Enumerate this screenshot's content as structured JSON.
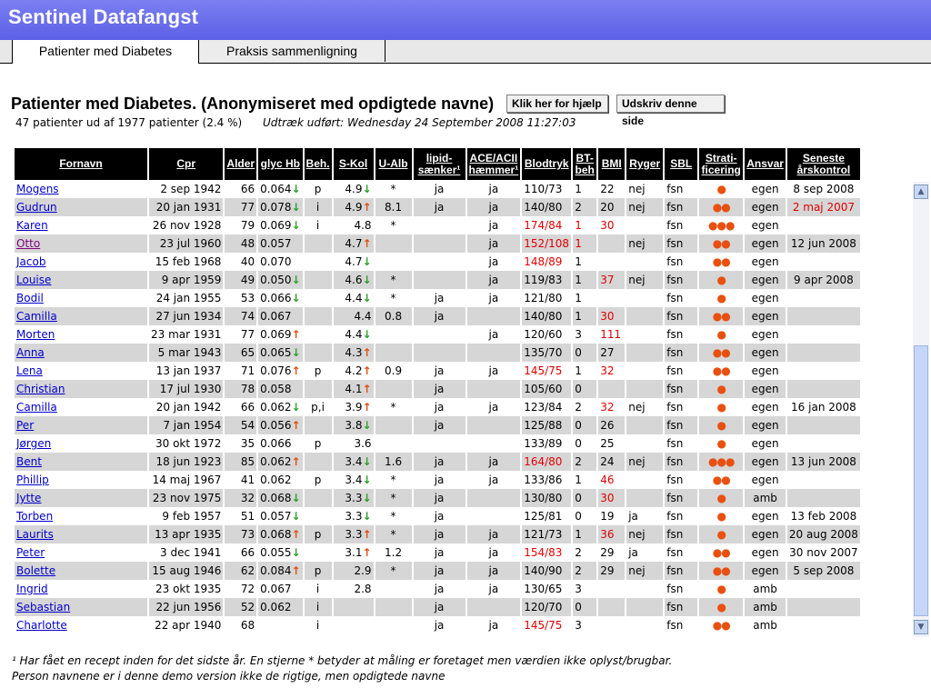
{
  "app_title": "Sentinel Datafangst",
  "tabs": [
    {
      "label": "Patienter med Diabetes"
    },
    {
      "label": "Praksis sammenligning"
    }
  ],
  "page_title": "Patienter med Diabetes. (Anonymiseret med opdigtede navne)",
  "buttons": {
    "help": "Klik her for hjælp",
    "print": "Udskriv denne side"
  },
  "summary": "47 patienter ud af 1977 patienter (2.4 %)",
  "extract": "Udtræk udført: Wednesday 24 September 2008 11:27:03",
  "columns": [
    "Fornavn",
    "Cpr",
    "Alder",
    "glyc Hb",
    "Beh.",
    "S-Kol",
    "U-Alb",
    "lipid-sænker¹",
    "ACE/ACII hæmmer¹",
    "Blodtryk",
    "BT-beh",
    "BMI",
    "Ryger",
    "SBL",
    "Strati-ficering",
    "Ansvar",
    "Seneste årskontrol"
  ],
  "rows": [
    {
      "name": "Mogens",
      "cpr": "2 sep 1942",
      "age": "66",
      "hb": "0.064",
      "hb_t": "down",
      "beh": "p",
      "kol": "4.9",
      "kol_t": "down",
      "alb": "*",
      "lipid": "ja",
      "ace": "ja",
      "bt": "110/73",
      "bt_red": false,
      "btbeh": "1",
      "btbeh_red": false,
      "bmi": "22",
      "bmi_red": false,
      "ryger": "nej",
      "sbl": "fsn",
      "strat": "●",
      "ansvar": "egen",
      "seneste": "8 sep 2008",
      "seneste_red": false
    },
    {
      "name": "Gudrun",
      "cpr": "20 jan 1931",
      "age": "77",
      "hb": "0.078",
      "hb_t": "down",
      "beh": "i",
      "kol": "4.9",
      "kol_t": "up",
      "alb": "8.1",
      "lipid": "ja",
      "ace": "ja",
      "bt": "140/80",
      "bt_red": false,
      "btbeh": "2",
      "btbeh_red": false,
      "bmi": "20",
      "bmi_red": false,
      "ryger": "nej",
      "sbl": "fsn",
      "strat": "●●",
      "ansvar": "egen",
      "seneste": "2 maj 2007",
      "seneste_red": true
    },
    {
      "name": "Karen",
      "cpr": "26 nov 1928",
      "age": "79",
      "hb": "0.069",
      "hb_t": "down",
      "beh": "i",
      "kol": "4.8",
      "kol_t": "",
      "alb": "*",
      "lipid": "",
      "ace": "ja",
      "bt": "174/84",
      "bt_red": true,
      "btbeh": "1",
      "btbeh_red": true,
      "bmi": "30",
      "bmi_red": true,
      "ryger": "",
      "sbl": "fsn",
      "strat": "●●●",
      "ansvar": "egen",
      "seneste": "",
      "seneste_red": false
    },
    {
      "name": "Otto",
      "visited": true,
      "cpr": "23 jul 1960",
      "age": "48",
      "hb": "0.057",
      "hb_t": "",
      "beh": "",
      "kol": "4.7",
      "kol_t": "up",
      "alb": "",
      "lipid": "",
      "ace": "ja",
      "bt": "152/108",
      "bt_red": true,
      "btbeh": "1",
      "btbeh_red": true,
      "bmi": "",
      "bmi_red": false,
      "ryger": "nej",
      "sbl": "fsn",
      "strat": "●●",
      "ansvar": "egen",
      "seneste": "12 jun 2008",
      "seneste_red": false
    },
    {
      "name": "Jacob",
      "cpr": "15 feb 1968",
      "age": "40",
      "hb": "0.070",
      "hb_t": "",
      "beh": "",
      "kol": "4.7",
      "kol_t": "down",
      "alb": "",
      "lipid": "",
      "ace": "ja",
      "bt": "148/89",
      "bt_red": true,
      "btbeh": "1",
      "btbeh_red": false,
      "bmi": "",
      "bmi_red": false,
      "ryger": "",
      "sbl": "fsn",
      "strat": "●●",
      "ansvar": "egen",
      "seneste": "",
      "seneste_red": false
    },
    {
      "name": "Louise",
      "cpr": "9 apr 1959",
      "age": "49",
      "hb": "0.050",
      "hb_t": "down",
      "beh": "",
      "kol": "4.6",
      "kol_t": "down",
      "alb": "*",
      "lipid": "",
      "ace": "ja",
      "bt": "119/83",
      "bt_red": false,
      "btbeh": "1",
      "btbeh_red": false,
      "bmi": "37",
      "bmi_red": true,
      "ryger": "nej",
      "sbl": "fsn",
      "strat": "●",
      "ansvar": "egen",
      "seneste": "9 apr 2008",
      "seneste_red": false
    },
    {
      "name": "Bodil",
      "cpr": "24 jan 1955",
      "age": "53",
      "hb": "0.066",
      "hb_t": "down",
      "beh": "",
      "kol": "4.4",
      "kol_t": "down",
      "alb": "*",
      "lipid": "ja",
      "ace": "ja",
      "bt": "121/80",
      "bt_red": false,
      "btbeh": "1",
      "btbeh_red": false,
      "bmi": "",
      "bmi_red": false,
      "ryger": "",
      "sbl": "fsn",
      "strat": "●",
      "ansvar": "egen",
      "seneste": "",
      "seneste_red": false
    },
    {
      "name": "Camilla",
      "cpr": "27 jun 1934",
      "age": "74",
      "hb": "0.067",
      "hb_t": "",
      "beh": "",
      "kol": "4.4",
      "kol_t": "",
      "alb": "0.8",
      "lipid": "ja",
      "ace": "",
      "bt": "140/80",
      "bt_red": false,
      "btbeh": "1",
      "btbeh_red": false,
      "bmi": "30",
      "bmi_red": true,
      "ryger": "",
      "sbl": "fsn",
      "strat": "●●",
      "ansvar": "egen",
      "seneste": "",
      "seneste_red": false
    },
    {
      "name": "Morten",
      "cpr": "23 mar 1931",
      "age": "77",
      "hb": "0.069",
      "hb_t": "up",
      "beh": "",
      "kol": "4.4",
      "kol_t": "down",
      "alb": "",
      "lipid": "",
      "ace": "ja",
      "bt": "120/60",
      "bt_red": false,
      "btbeh": "3",
      "btbeh_red": false,
      "bmi": "111",
      "bmi_red": true,
      "ryger": "",
      "sbl": "fsn",
      "strat": "●",
      "ansvar": "egen",
      "seneste": "",
      "seneste_red": false
    },
    {
      "name": "Anna",
      "cpr": "5 mar 1943",
      "age": "65",
      "hb": "0.065",
      "hb_t": "down",
      "beh": "",
      "kol": "4.3",
      "kol_t": "up",
      "alb": "",
      "lipid": "",
      "ace": "",
      "bt": "135/70",
      "bt_red": false,
      "btbeh": "0",
      "btbeh_red": false,
      "bmi": "27",
      "bmi_red": false,
      "ryger": "",
      "sbl": "fsn",
      "strat": "●●",
      "ansvar": "egen",
      "seneste": "",
      "seneste_red": false
    },
    {
      "name": "Lena",
      "cpr": "13 jan 1937",
      "age": "71",
      "hb": "0.076",
      "hb_t": "up",
      "beh": "p",
      "kol": "4.2",
      "kol_t": "up",
      "alb": "0.9",
      "lipid": "ja",
      "ace": "ja",
      "bt": "145/75",
      "bt_red": true,
      "btbeh": "1",
      "btbeh_red": false,
      "bmi": "32",
      "bmi_red": true,
      "ryger": "",
      "sbl": "fsn",
      "strat": "●●",
      "ansvar": "egen",
      "seneste": "",
      "seneste_red": false
    },
    {
      "name": "Christian",
      "cpr": "17 jul 1930",
      "age": "78",
      "hb": "0.058",
      "hb_t": "",
      "beh": "",
      "kol": "4.1",
      "kol_t": "up",
      "alb": "",
      "lipid": "ja",
      "ace": "",
      "bt": "105/60",
      "bt_red": false,
      "btbeh": "0",
      "btbeh_red": false,
      "bmi": "",
      "bmi_red": false,
      "ryger": "",
      "sbl": "fsn",
      "strat": "●",
      "ansvar": "egen",
      "seneste": "",
      "seneste_red": false
    },
    {
      "name": "Camilla",
      "cpr": "20 jan 1942",
      "age": "66",
      "hb": "0.062",
      "hb_t": "down",
      "beh": "p,i",
      "kol": "3.9",
      "kol_t": "up",
      "alb": "*",
      "lipid": "ja",
      "ace": "ja",
      "bt": "123/84",
      "bt_red": false,
      "btbeh": "2",
      "btbeh_red": false,
      "bmi": "32",
      "bmi_red": true,
      "ryger": "nej",
      "sbl": "fsn",
      "strat": "●",
      "ansvar": "egen",
      "seneste": "16 jan 2008",
      "seneste_red": false
    },
    {
      "name": "Per",
      "cpr": "7 jan 1954",
      "age": "54",
      "hb": "0.056",
      "hb_t": "up",
      "beh": "",
      "kol": "3.8",
      "kol_t": "down",
      "alb": "",
      "lipid": "ja",
      "ace": "",
      "bt": "125/88",
      "bt_red": false,
      "btbeh": "0",
      "btbeh_red": false,
      "bmi": "26",
      "bmi_red": false,
      "ryger": "",
      "sbl": "fsn",
      "strat": "●",
      "ansvar": "egen",
      "seneste": "",
      "seneste_red": false
    },
    {
      "name": "Jørgen",
      "cpr": "30 okt 1972",
      "age": "35",
      "hb": "0.066",
      "hb_t": "",
      "beh": "p",
      "kol": "3.6",
      "kol_t": "",
      "alb": "",
      "lipid": "",
      "ace": "",
      "bt": "133/89",
      "bt_red": false,
      "btbeh": "0",
      "btbeh_red": false,
      "bmi": "25",
      "bmi_red": false,
      "ryger": "",
      "sbl": "fsn",
      "strat": "●",
      "ansvar": "egen",
      "seneste": "",
      "seneste_red": false
    },
    {
      "name": "Bent",
      "cpr": "18 jun 1923",
      "age": "85",
      "hb": "0.062",
      "hb_t": "up",
      "beh": "",
      "kol": "3.4",
      "kol_t": "down",
      "alb": "1.6",
      "lipid": "ja",
      "ace": "ja",
      "bt": "164/80",
      "bt_red": true,
      "btbeh": "2",
      "btbeh_red": false,
      "bmi": "24",
      "bmi_red": false,
      "ryger": "nej",
      "sbl": "fsn",
      "strat": "●●●",
      "ansvar": "egen",
      "seneste": "13 jun 2008",
      "seneste_red": false
    },
    {
      "name": "Phillip",
      "cpr": "14 maj 1967",
      "age": "41",
      "hb": "0.062",
      "hb_t": "",
      "beh": "p",
      "kol": "3.4",
      "kol_t": "down",
      "alb": "*",
      "lipid": "ja",
      "ace": "ja",
      "bt": "133/86",
      "bt_red": false,
      "btbeh": "1",
      "btbeh_red": false,
      "bmi": "46",
      "bmi_red": true,
      "ryger": "",
      "sbl": "fsn",
      "strat": "●●",
      "ansvar": "egen",
      "seneste": "",
      "seneste_red": false
    },
    {
      "name": "Jytte",
      "cpr": "23 nov 1975",
      "age": "32",
      "hb": "0.068",
      "hb_t": "down",
      "beh": "",
      "kol": "3.3",
      "kol_t": "down",
      "alb": "*",
      "lipid": "ja",
      "ace": "",
      "bt": "130/80",
      "bt_red": false,
      "btbeh": "0",
      "btbeh_red": false,
      "bmi": "30",
      "bmi_red": true,
      "ryger": "",
      "sbl": "fsn",
      "strat": "●",
      "ansvar": "amb",
      "seneste": "",
      "seneste_red": false
    },
    {
      "name": "Torben",
      "cpr": "9 feb 1957",
      "age": "51",
      "hb": "0.057",
      "hb_t": "down",
      "beh": "",
      "kol": "3.3",
      "kol_t": "down",
      "alb": "*",
      "lipid": "ja",
      "ace": "",
      "bt": "125/81",
      "bt_red": false,
      "btbeh": "0",
      "btbeh_red": false,
      "bmi": "19",
      "bmi_red": false,
      "ryger": "ja",
      "sbl": "fsn",
      "strat": "●",
      "ansvar": "egen",
      "seneste": "13 feb 2008",
      "seneste_red": false
    },
    {
      "name": "Laurits",
      "cpr": "13 apr 1935",
      "age": "73",
      "hb": "0.068",
      "hb_t": "up",
      "beh": "p",
      "kol": "3.3",
      "kol_t": "up",
      "alb": "*",
      "lipid": "ja",
      "ace": "ja",
      "bt": "121/73",
      "bt_red": false,
      "btbeh": "1",
      "btbeh_red": false,
      "bmi": "36",
      "bmi_red": true,
      "ryger": "nej",
      "sbl": "fsn",
      "strat": "●",
      "ansvar": "egen",
      "seneste": "20 aug 2008",
      "seneste_red": false
    },
    {
      "name": "Peter",
      "cpr": "3 dec 1941",
      "age": "66",
      "hb": "0.055",
      "hb_t": "down",
      "beh": "",
      "kol": "3.1",
      "kol_t": "up",
      "alb": "1.2",
      "lipid": "ja",
      "ace": "ja",
      "bt": "154/83",
      "bt_red": true,
      "btbeh": "2",
      "btbeh_red": false,
      "bmi": "29",
      "bmi_red": false,
      "ryger": "ja",
      "sbl": "fsn",
      "strat": "●●",
      "ansvar": "egen",
      "seneste": "30 nov 2007",
      "seneste_red": false
    },
    {
      "name": "Bolette",
      "cpr": "15 aug 1946",
      "age": "62",
      "hb": "0.084",
      "hb_t": "up",
      "beh": "p",
      "kol": "2.9",
      "kol_t": "",
      "alb": "*",
      "lipid": "ja",
      "ace": "ja",
      "bt": "140/90",
      "bt_red": false,
      "btbeh": "2",
      "btbeh_red": false,
      "bmi": "29",
      "bmi_red": false,
      "ryger": "nej",
      "sbl": "fsn",
      "strat": "●●",
      "ansvar": "egen",
      "seneste": "5 sep 2008",
      "seneste_red": false
    },
    {
      "name": "Ingrid",
      "cpr": "23 okt 1935",
      "age": "72",
      "hb": "0.067",
      "hb_t": "",
      "beh": "i",
      "kol": "2.8",
      "kol_t": "",
      "alb": "",
      "lipid": "ja",
      "ace": "ja",
      "bt": "130/65",
      "bt_red": false,
      "btbeh": "3",
      "btbeh_red": false,
      "bmi": "",
      "bmi_red": false,
      "ryger": "",
      "sbl": "fsn",
      "strat": "●",
      "ansvar": "amb",
      "seneste": "",
      "seneste_red": false
    },
    {
      "name": "Sebastian",
      "cpr": "22 jun 1956",
      "age": "52",
      "hb": "0.062",
      "hb_t": "",
      "beh": "i",
      "kol": "",
      "kol_t": "",
      "alb": "",
      "lipid": "ja",
      "ace": "",
      "bt": "120/70",
      "bt_red": false,
      "btbeh": "0",
      "btbeh_red": false,
      "bmi": "",
      "bmi_red": false,
      "ryger": "",
      "sbl": "fsn",
      "strat": "●",
      "ansvar": "amb",
      "seneste": "",
      "seneste_red": false
    },
    {
      "name": "Charlotte",
      "cpr": "22 apr 1940",
      "age": "68",
      "hb": "",
      "hb_t": "",
      "beh": "i",
      "kol": "",
      "kol_t": "",
      "alb": "",
      "lipid": "ja",
      "ace": "ja",
      "bt": "145/75",
      "bt_red": true,
      "btbeh": "3",
      "btbeh_red": false,
      "bmi": "",
      "bmi_red": false,
      "ryger": "",
      "sbl": "fsn",
      "strat": "●●",
      "ansvar": "amb",
      "seneste": "",
      "seneste_red": false
    }
  ],
  "footnotes": {
    "line1": "¹ Har fået en recept inden for det sidste år.    En stjerne * betyder at måling er foretaget men værdien ikke oplyst/brugbar.",
    "line2": "Person navnene er i denne demo version ikke de rigtige, men opdigtede navne"
  },
  "colors": {
    "title_bar": "#6b6fea",
    "row_alt": "#d6d6d6",
    "header_bg": "#000000",
    "trend_up": "#e05010",
    "trend_down": "#2aa02a",
    "alert_red": "#e00000",
    "strat_dot": "#e85010"
  },
  "icons": {
    "trend_up": "arrow-up-icon",
    "trend_down": "arrow-down-icon",
    "scroll_up": "scroll-up-arrow-icon",
    "scroll_down": "scroll-down-arrow-icon"
  }
}
